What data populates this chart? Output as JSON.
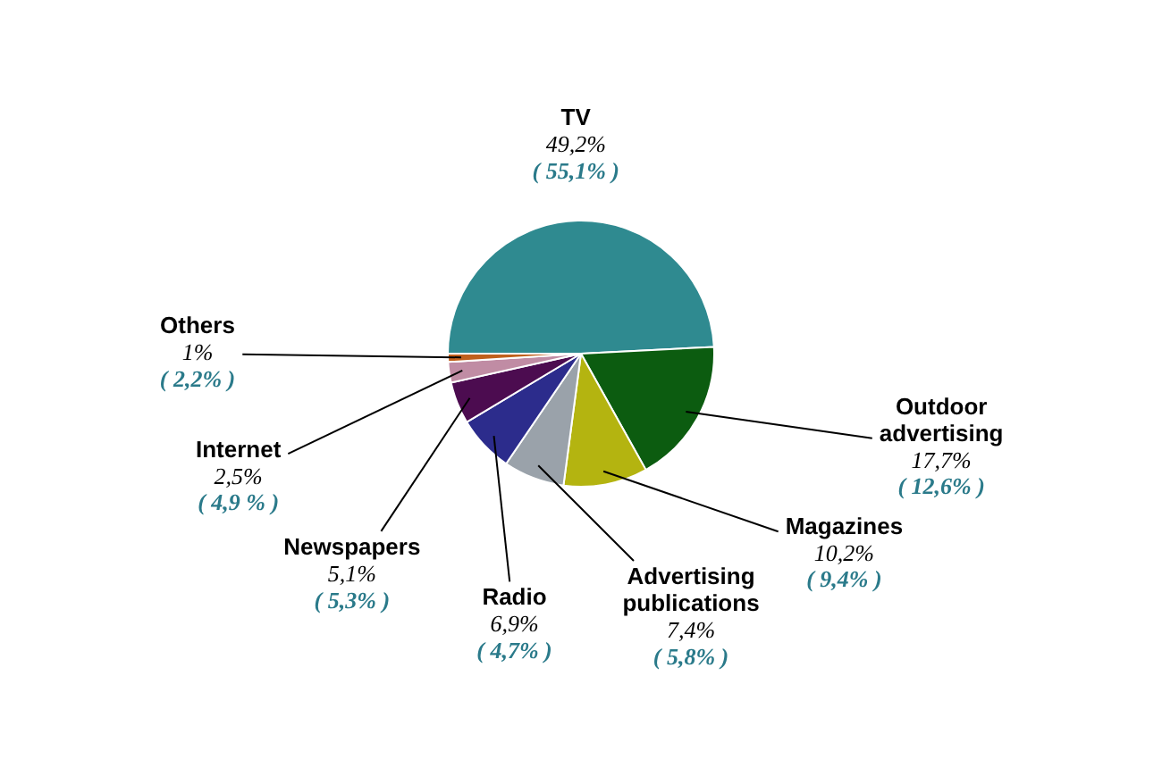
{
  "chart_data": {
    "type": "pie",
    "categories": [
      "TV",
      "Outdoor advertising",
      "Magazines",
      "Advertising publications",
      "Radio",
      "Newspapers",
      "Internet",
      "Others"
    ],
    "values": [
      49.2,
      17.7,
      10.2,
      7.4,
      6.9,
      5.1,
      2.5,
      1
    ],
    "colors": [
      "#2f8a90",
      "#0c5c10",
      "#b4b410",
      "#9aa2aa",
      "#2c2c8c",
      "#4c0c50",
      "#c08ca4",
      "#c0601c"
    ],
    "value_labels": [
      "49,2%",
      "17,7%",
      "10,2%",
      "7,4%",
      "6,9%",
      "5,1%",
      "2,5%",
      "1%"
    ],
    "annotations": [
      "( 55,1% )",
      "( 12,6% )",
      "( 9,4% )",
      "( 5,8% )",
      "( 4,7% )",
      "( 5,3% )",
      "( 4,9 % )",
      "( 2,2% )"
    ],
    "legend": false
  }
}
